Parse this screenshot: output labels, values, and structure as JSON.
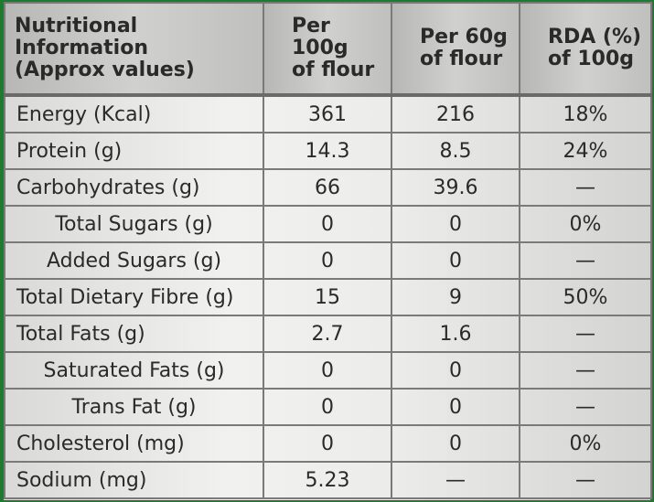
{
  "header": {
    "col1": [
      "Nutritional",
      "Information",
      "(Approx values)"
    ],
    "col2": [
      "Per 100g",
      "of flour"
    ],
    "col3": [
      "Per 60g",
      "of flour"
    ],
    "col4": [
      "RDA (%)",
      "of 100g"
    ]
  },
  "rows": [
    {
      "label": "Energy (Kcal)",
      "per100": "361",
      "per60": "216",
      "rda": "18%"
    },
    {
      "label": "Protein (g)",
      "per100": "14.3",
      "per60": "8.5",
      "rda": "24%"
    },
    {
      "label": "Carbohydrates (g)",
      "per100": "66",
      "per60": "39.6",
      "rda": "—"
    },
    {
      "label": "Total Sugars (g)",
      "per100": "0",
      "per60": "0",
      "rda": "0%"
    },
    {
      "label": "Added Sugars (g)",
      "per100": "0",
      "per60": "0",
      "rda": "—"
    },
    {
      "label": "Total Dietary Fibre (g)",
      "per100": "15",
      "per60": "9",
      "rda": "50%"
    },
    {
      "label": "Total Fats (g)",
      "per100": "2.7",
      "per60": "1.6",
      "rda": "—"
    },
    {
      "label": "Saturated Fats (g)",
      "per100": "0",
      "per60": "0",
      "rda": "—"
    },
    {
      "label": "Trans Fat (g)",
      "per100": "0",
      "per60": "0",
      "rda": "—"
    },
    {
      "label": "Cholesterol (mg)",
      "per100": "0",
      "per60": "0",
      "rda": "0%"
    },
    {
      "label": "Sodium (mg)",
      "per100": "5.23",
      "per60": "—",
      "rda": "—"
    }
  ]
}
